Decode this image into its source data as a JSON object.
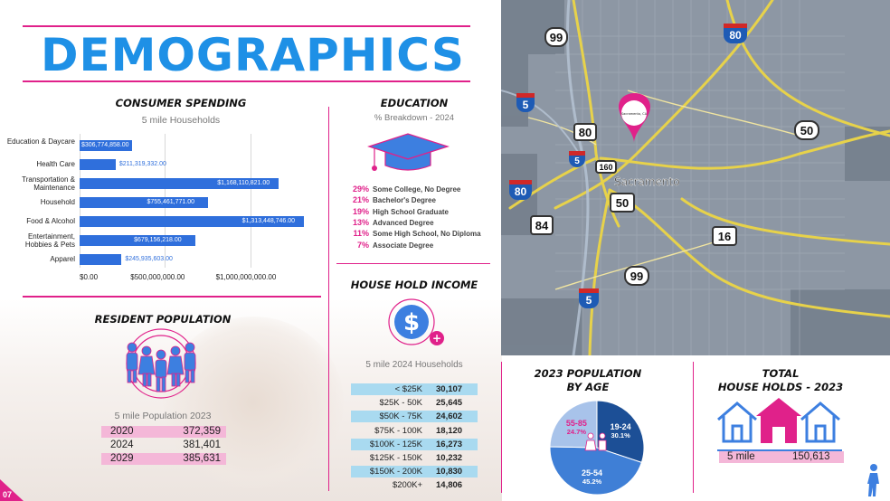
{
  "title": "DEMOGRAPHICS",
  "page_number": "07",
  "consumer_spending": {
    "heading": "CONSUMER SPENDING",
    "subtitle": "5 mile Households"
  },
  "chart_data": {
    "type": "bar",
    "orientation": "horizontal",
    "categories": [
      "Education & Daycare",
      "Health Care",
      "Transportation & Maintenance",
      "Household",
      "Food & Alcohol",
      "Entertainment, Hobbies & Pets",
      "Apparel"
    ],
    "values": [
      306774858,
      211319332,
      1168110821,
      755461771,
      1313448746,
      679156218,
      245935603
    ],
    "value_labels": [
      "$306,774,858.00",
      "$211,319,332.00",
      "$1,168,110,821.00",
      "$755,461,771.00",
      "$1,313,448,746.00",
      "$679,156,218.00",
      "$245,935,603.00"
    ],
    "xlim": [
      0,
      1400000000
    ],
    "xticks": [
      0,
      500000000,
      1000000000
    ],
    "xtick_labels": [
      "$0.00",
      "$500,000,000.00",
      "$1,000,000,000.00"
    ],
    "grid": true
  },
  "education": {
    "heading": "EDUCATION",
    "subtitle": "% Breakdown - 2024",
    "rows": [
      {
        "pct": "29%",
        "label": "Some College, No Degree"
      },
      {
        "pct": "21%",
        "label": "Bachelor's Degree"
      },
      {
        "pct": "19%",
        "label": "High School Graduate"
      },
      {
        "pct": "13%",
        "label": "Advanced Degree"
      },
      {
        "pct": "11%",
        "label": "Some High School, No Diploma"
      },
      {
        "pct": "7%",
        "label": "Associate Degree"
      }
    ]
  },
  "income": {
    "heading": "HOUSE HOLD INCOME",
    "subtitle": "5 mile 2024 Households",
    "rows": [
      {
        "label": "< $25K",
        "value": "30,107"
      },
      {
        "label": "$25K - 50K",
        "value": "25,645"
      },
      {
        "label": "$50K - 75K",
        "value": "24,602"
      },
      {
        "label": "$75K - 100K",
        "value": "18,120"
      },
      {
        "label": "$100K - 125K",
        "value": "16,273"
      },
      {
        "label": "$125K - 150K",
        "value": "10,232"
      },
      {
        "label": "$150K - 200K",
        "value": "10,830"
      },
      {
        "label": "$200K+",
        "value": "14,806"
      }
    ]
  },
  "resident_population": {
    "heading": "RESIDENT POPULATION",
    "subtitle": "5 mile Population 2023",
    "rows": [
      {
        "year": "2020",
        "value": "372,359"
      },
      {
        "year": "2024",
        "value": "381,401"
      },
      {
        "year": "2029",
        "value": "385,631"
      }
    ]
  },
  "population_by_age": {
    "heading_line1": "2023 POPULATION",
    "heading_line2": "BY AGE",
    "slices": [
      {
        "label": "19-24",
        "pct": "30.1%",
        "value": 30.1,
        "color": "#1c4f96"
      },
      {
        "label": "25-54",
        "pct": "45.2%",
        "value": 45.2,
        "color": "#3f7fd6"
      },
      {
        "label": "55-85",
        "pct": "24.7%",
        "value": 24.7,
        "color": "#a8c3ea"
      }
    ]
  },
  "total_households": {
    "heading_line1": "TOTAL",
    "heading_line2": "HOUSE HOLDS - 2023",
    "label": "5 mile",
    "value": "150,613"
  },
  "map": {
    "city_label": "Sacramento",
    "marker_text": "Sacramento, CA",
    "highways": [
      {
        "id": "99",
        "type": "state"
      },
      {
        "id": "80",
        "type": "interstate"
      },
      {
        "id": "5",
        "type": "interstate"
      },
      {
        "id": "80",
        "type": "state"
      },
      {
        "id": "50",
        "type": "state"
      },
      {
        "id": "160",
        "type": "state"
      },
      {
        "id": "84",
        "type": "state"
      },
      {
        "id": "16",
        "type": "state"
      },
      {
        "id": "99",
        "type": "state"
      },
      {
        "id": "5",
        "type": "interstate"
      },
      {
        "id": "80",
        "type": "interstate"
      },
      {
        "id": "5",
        "type": "interstate"
      },
      {
        "id": "50",
        "type": "state"
      }
    ]
  },
  "colors": {
    "accent_pink": "#e0218a",
    "accent_blue": "#1e90e6",
    "bar_blue": "#2f6fdc"
  }
}
